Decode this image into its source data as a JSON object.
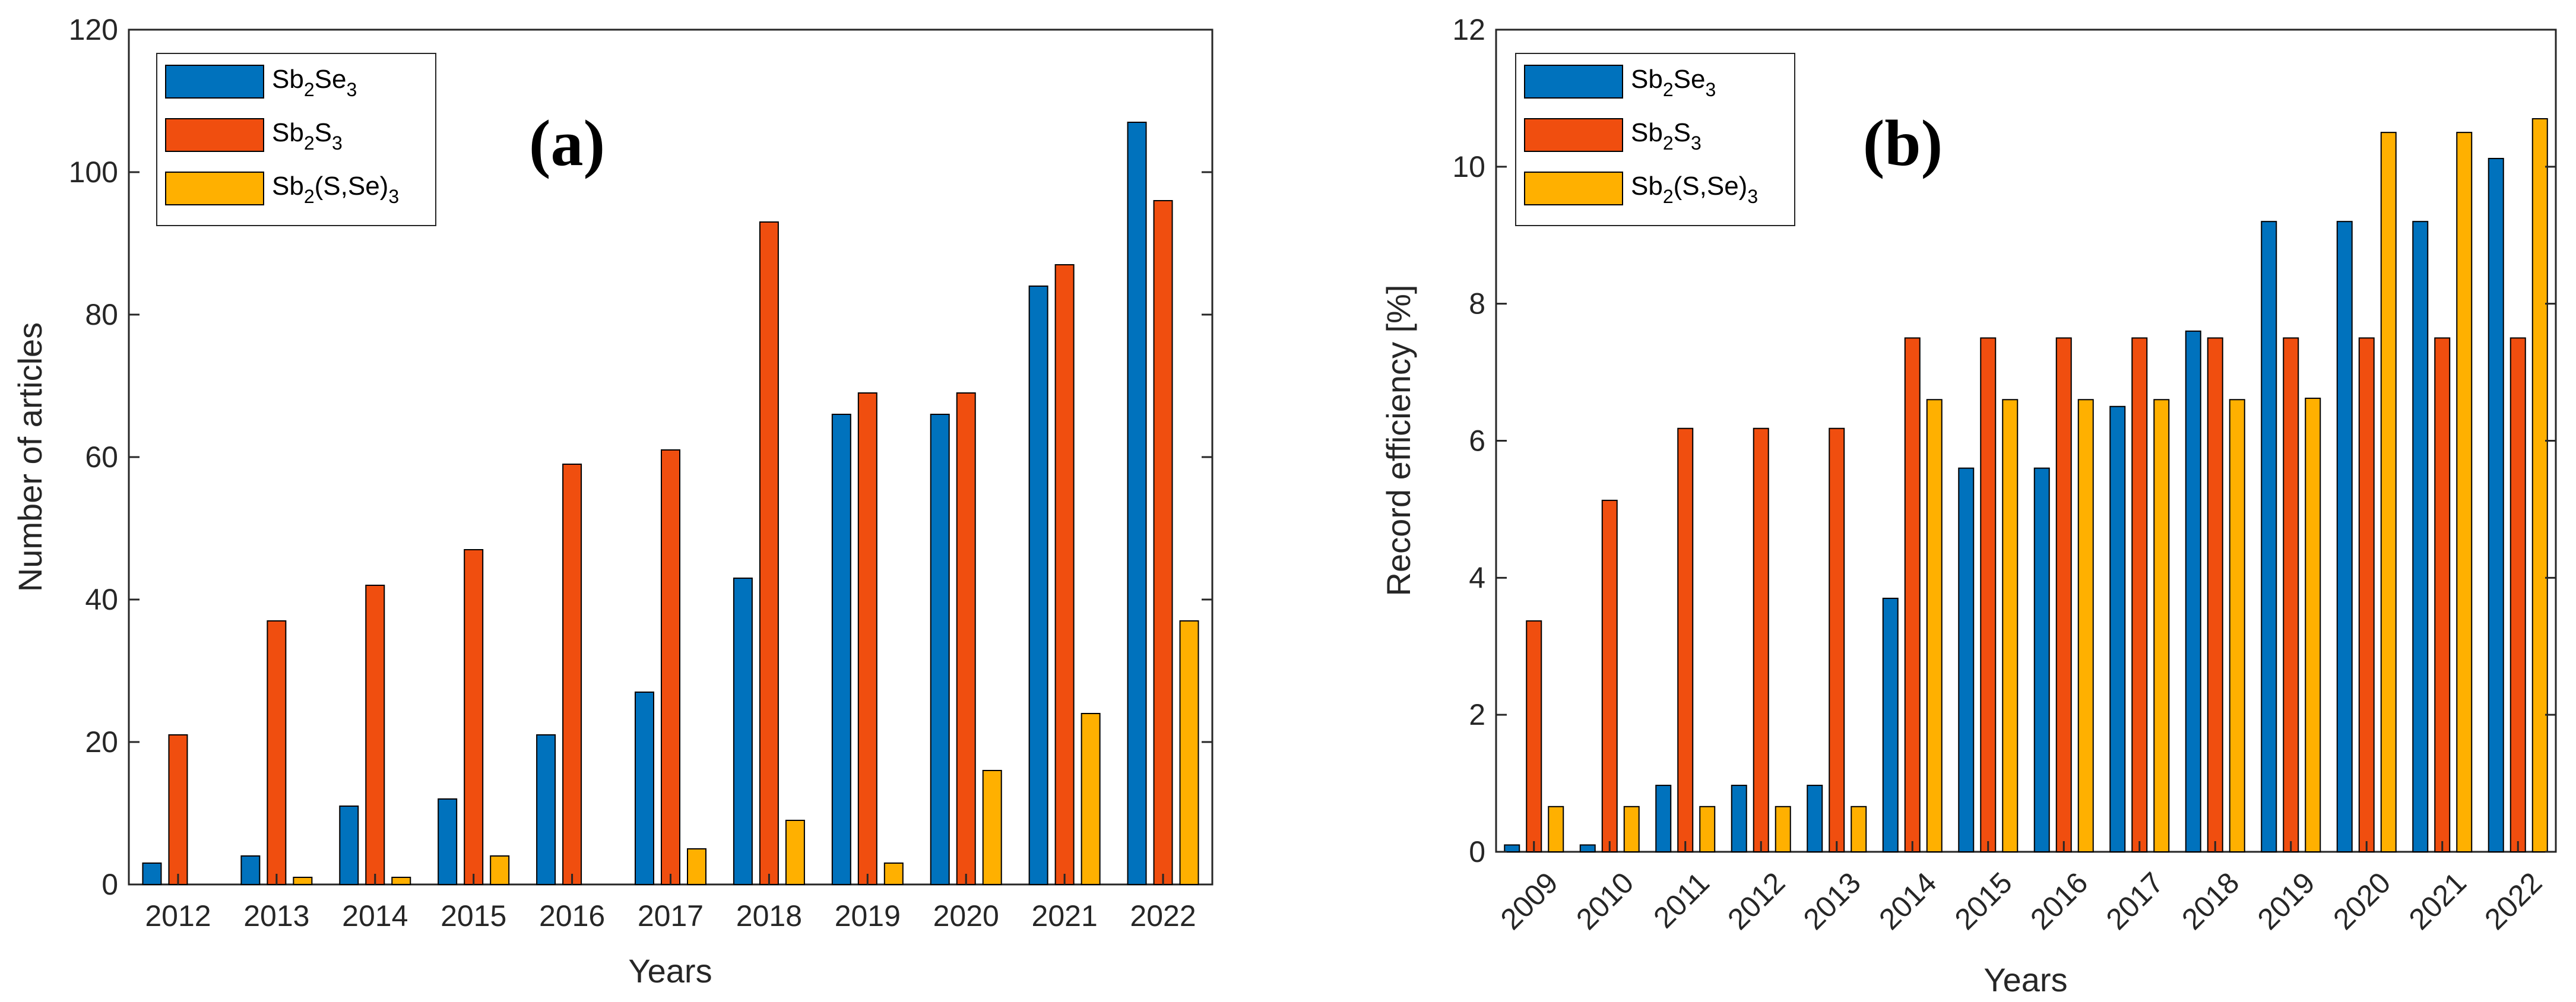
{
  "chart_data": [
    {
      "type": "bar",
      "panel_label": "(a)",
      "title": "",
      "xlabel": "Years",
      "ylabel": "Number of articles",
      "ylim": [
        0,
        120
      ],
      "yticks": [
        "0",
        "20",
        "40",
        "60",
        "80",
        "100",
        "120"
      ],
      "categories": [
        "2012",
        "2013",
        "2014",
        "2015",
        "2016",
        "2017",
        "2018",
        "2019",
        "2020",
        "2021",
        "2022"
      ],
      "series": [
        {
          "name": "Sb2Se3",
          "legend_parts": [
            "Sb",
            "2",
            "Se",
            "3",
            ""
          ],
          "color": "#0072BD",
          "values": [
            3,
            4,
            11,
            12,
            21,
            27,
            43,
            66,
            66,
            84,
            107
          ]
        },
        {
          "name": "Sb2S3",
          "legend_parts": [
            "Sb",
            "2",
            "S",
            "3",
            ""
          ],
          "color": "#F04E0F",
          "values": [
            21,
            37,
            42,
            47,
            59,
            61,
            93,
            69,
            69,
            87,
            96
          ]
        },
        {
          "name": "Sb2(S,Se)3",
          "legend_parts": [
            "Sb",
            "2",
            "(S,Se)",
            "3",
            ""
          ],
          "color": "#FFB000",
          "values": [
            0,
            1,
            1,
            4,
            0,
            5,
            9,
            3,
            16,
            24,
            37
          ]
        }
      ],
      "legend_position": "top-left",
      "grid": false
    },
    {
      "type": "bar",
      "panel_label": "(b)",
      "title": "",
      "xlabel": "Years",
      "ylabel": "Record efficiency [%]",
      "ylim": [
        0,
        12
      ],
      "yticks": [
        "0",
        "2",
        "4",
        "6",
        "8",
        "10",
        "12"
      ],
      "categories": [
        "2009",
        "2010",
        "2011",
        "2012",
        "2013",
        "2014",
        "2015",
        "2016",
        "2017",
        "2018",
        "2019",
        "2020",
        "2021",
        "2022"
      ],
      "series": [
        {
          "name": "Sb2Se3",
          "legend_parts": [
            "Sb",
            "2",
            "Se",
            "3",
            ""
          ],
          "color": "#0072BD",
          "values": [
            0.1,
            0.1,
            0.97,
            0.97,
            0.97,
            3.7,
            5.6,
            5.6,
            6.5,
            7.6,
            9.2,
            9.2,
            9.2,
            10.12
          ]
        },
        {
          "name": "Sb2S3",
          "legend_parts": [
            "Sb",
            "2",
            "S",
            "3",
            ""
          ],
          "color": "#F04E0F",
          "values": [
            3.37,
            5.13,
            6.18,
            6.18,
            6.18,
            7.5,
            7.5,
            7.5,
            7.5,
            7.5,
            7.5,
            7.5,
            7.5,
            7.5
          ]
        },
        {
          "name": "Sb2(S,Se)3",
          "legend_parts": [
            "Sb",
            "2",
            "(S,Se)",
            "3",
            ""
          ],
          "color": "#FFB000",
          "values": [
            0.66,
            0.66,
            0.66,
            0.66,
            0.66,
            6.6,
            6.6,
            6.6,
            6.6,
            6.6,
            6.62,
            10.5,
            10.5,
            10.7
          ]
        }
      ],
      "legend_position": "top-left",
      "grid": false
    }
  ]
}
